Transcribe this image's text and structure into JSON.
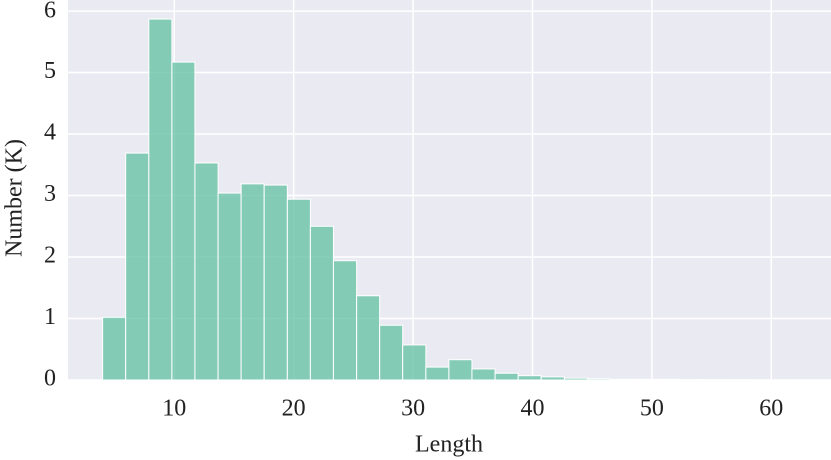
{
  "chart_data": {
    "type": "histogram",
    "xlabel": "Length",
    "ylabel": "Number (K)",
    "bins": [
      4,
      5.93,
      7.87,
      9.8,
      11.73,
      13.67,
      15.6,
      17.53,
      19.47,
      21.4,
      23.33,
      25.27,
      27.2,
      29.13,
      31.07,
      33,
      34.93,
      36.87,
      38.8,
      40.73,
      42.67,
      44.6,
      46.53,
      48.47,
      50.4,
      52.33,
      54.27,
      56.2,
      58.13,
      60.07,
      62
    ],
    "values": [
      1.02,
      3.69,
      5.87,
      5.17,
      3.53,
      3.04,
      3.19,
      3.17,
      2.94,
      2.5,
      1.94,
      1.37,
      0.89,
      0.57,
      0.21,
      0.33,
      0.18,
      0.11,
      0.07,
      0.05,
      0.03,
      0.02,
      0.01,
      0.01,
      0.01,
      0.005,
      0.005,
      0.003,
      0.002,
      0.002
    ],
    "color": "#66c2a5",
    "xlim": [
      1.1,
      65
    ],
    "ylim": [
      0,
      6.18
    ],
    "xticks": [
      10,
      20,
      30,
      40,
      50,
      60
    ],
    "yticks": [
      0,
      1,
      2,
      3,
      4,
      5,
      6
    ],
    "grid": true
  }
}
